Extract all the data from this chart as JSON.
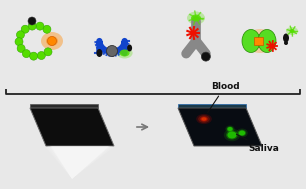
{
  "bg_color": "#e8e8e8",
  "green_color": "#55dd00",
  "green_dark": "#33aa00",
  "orange_color": "#ff8800",
  "blue_color": "#1144cc",
  "red_star_color": "#ee1100",
  "bracket_color": "#222222",
  "saliva_label": "Saliva",
  "blood_label": "Blood",
  "label_fontsize": 6.5
}
